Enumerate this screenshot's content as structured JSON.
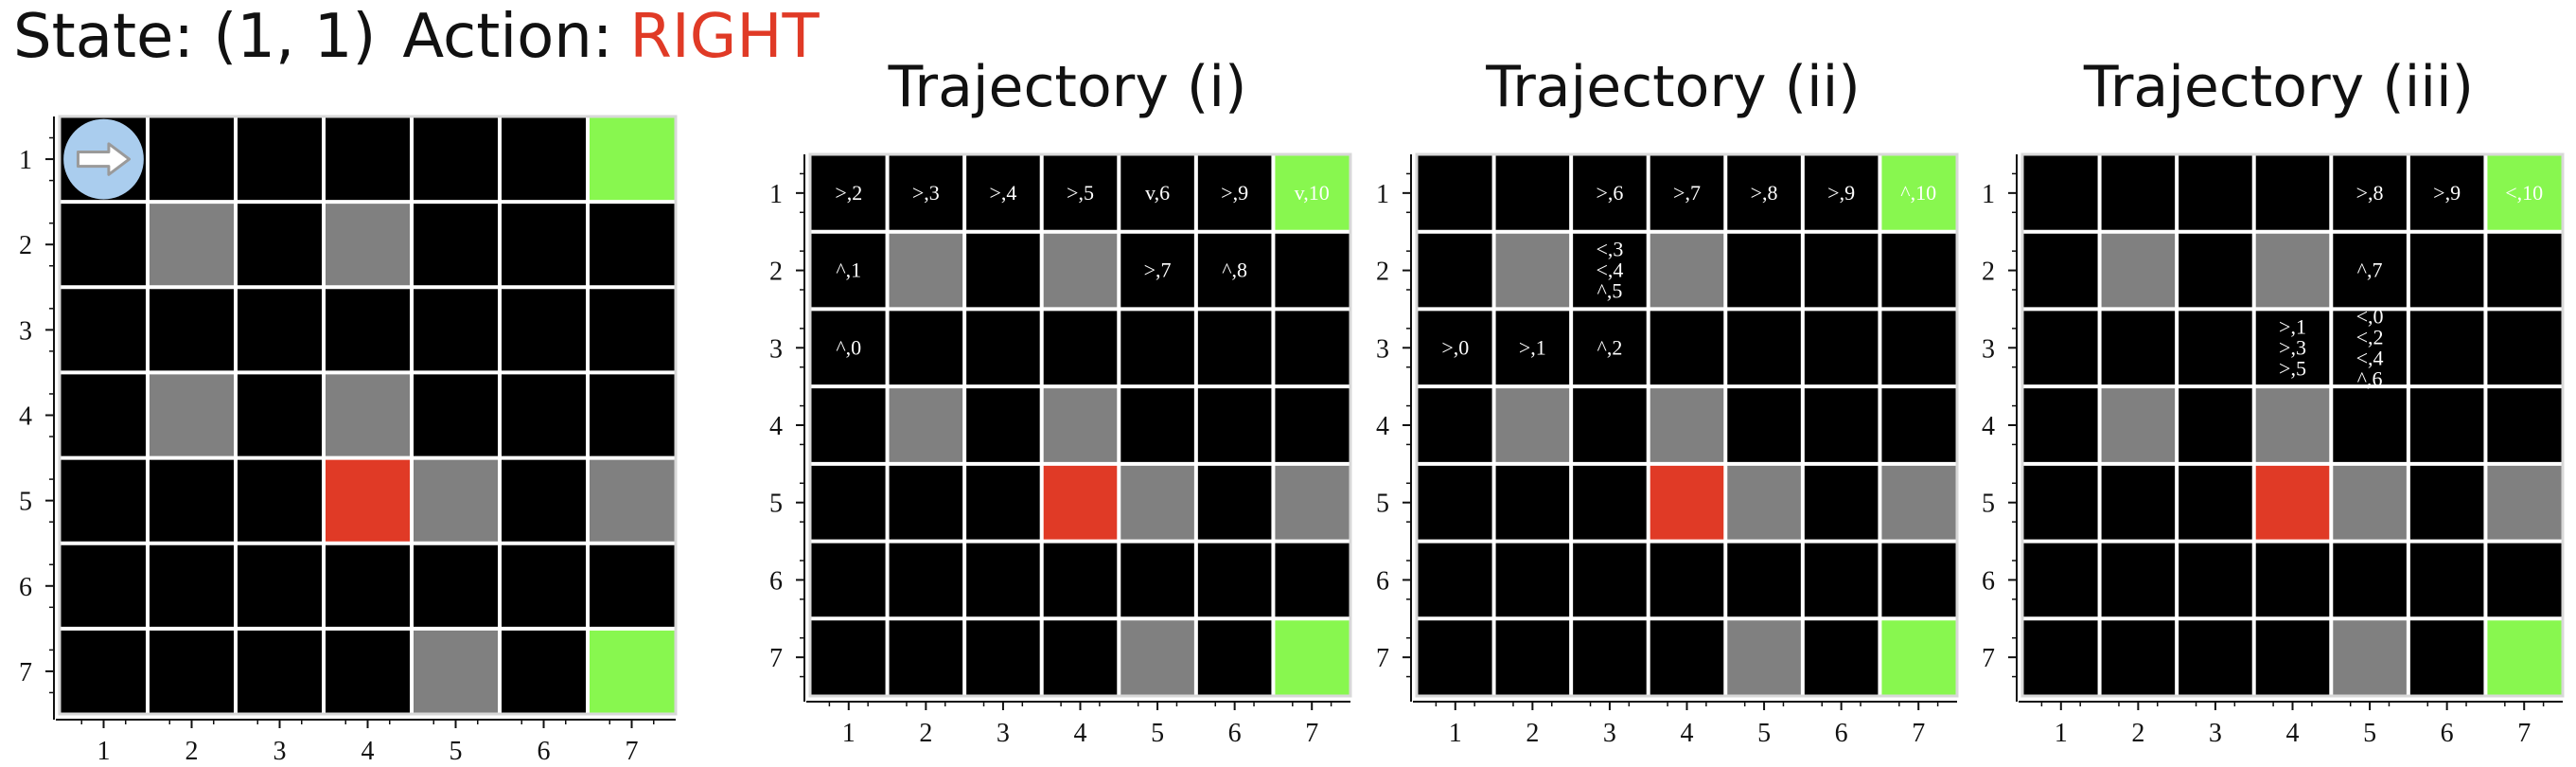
{
  "header": {
    "state_label": "State: (1, 1)",
    "action_label": "Action:",
    "action_value": "RIGHT",
    "action_color": "#e03a26"
  },
  "colors": {
    "empty": "#000000",
    "wall": "#808080",
    "hazard": "#e03a26",
    "goal": "#88f74f",
    "grid_line": "#ffffff",
    "agent": "#aacdee"
  },
  "grid": {
    "rows": 7,
    "cols": 7,
    "row_ticks": [
      "1",
      "2",
      "3",
      "4",
      "5",
      "6",
      "7"
    ],
    "col_ticks": [
      "1",
      "2",
      "3",
      "4",
      "5",
      "6",
      "7"
    ],
    "walls": [
      [
        2,
        2
      ],
      [
        2,
        4
      ],
      [
        4,
        2
      ],
      [
        4,
        4
      ],
      [
        5,
        5
      ],
      [
        5,
        7
      ],
      [
        7,
        5
      ]
    ],
    "hazards": [
      [
        5,
        4
      ]
    ],
    "goals": [
      [
        1,
        7
      ],
      [
        7,
        7
      ]
    ]
  },
  "main_panel": {
    "agent_cell": [
      1,
      1
    ],
    "agent_icon": "right-arrow-icon"
  },
  "trajectories": [
    {
      "title": "Trajectory (i)",
      "cells": [
        {
          "r": 1,
          "c": 1,
          "lines": [
            ">,2"
          ]
        },
        {
          "r": 1,
          "c": 2,
          "lines": [
            ">,3"
          ]
        },
        {
          "r": 1,
          "c": 3,
          "lines": [
            ">,4"
          ]
        },
        {
          "r": 1,
          "c": 4,
          "lines": [
            ">,5"
          ]
        },
        {
          "r": 1,
          "c": 5,
          "lines": [
            "v,6"
          ]
        },
        {
          "r": 1,
          "c": 6,
          "lines": [
            ">,9"
          ]
        },
        {
          "r": 1,
          "c": 7,
          "lines": [
            "v,10"
          ]
        },
        {
          "r": 2,
          "c": 1,
          "lines": [
            "^,1"
          ]
        },
        {
          "r": 2,
          "c": 5,
          "lines": [
            ">,7"
          ]
        },
        {
          "r": 2,
          "c": 6,
          "lines": [
            "^,8"
          ]
        },
        {
          "r": 3,
          "c": 1,
          "lines": [
            "^,0"
          ]
        }
      ]
    },
    {
      "title": "Trajectory (ii)",
      "cells": [
        {
          "r": 1,
          "c": 3,
          "lines": [
            ">,6"
          ]
        },
        {
          "r": 1,
          "c": 4,
          "lines": [
            ">,7"
          ]
        },
        {
          "r": 1,
          "c": 5,
          "lines": [
            ">,8"
          ]
        },
        {
          "r": 1,
          "c": 6,
          "lines": [
            ">,9"
          ]
        },
        {
          "r": 1,
          "c": 7,
          "lines": [
            "^,10"
          ]
        },
        {
          "r": 2,
          "c": 3,
          "lines": [
            "<,3",
            "<,4",
            "^,5"
          ]
        },
        {
          "r": 3,
          "c": 1,
          "lines": [
            ">,0"
          ]
        },
        {
          "r": 3,
          "c": 2,
          "lines": [
            ">,1"
          ]
        },
        {
          "r": 3,
          "c": 3,
          "lines": [
            "^,2"
          ]
        }
      ]
    },
    {
      "title": "Trajectory (iii)",
      "cells": [
        {
          "r": 1,
          "c": 5,
          "lines": [
            ">,8"
          ]
        },
        {
          "r": 1,
          "c": 6,
          "lines": [
            ">,9"
          ]
        },
        {
          "r": 1,
          "c": 7,
          "lines": [
            "<,10"
          ]
        },
        {
          "r": 2,
          "c": 5,
          "lines": [
            "^,7"
          ]
        },
        {
          "r": 3,
          "c": 4,
          "lines": [
            ">,1",
            ">,3",
            ">,5"
          ]
        },
        {
          "r": 3,
          "c": 5,
          "lines": [
            "<,0",
            "<,2",
            "<,4",
            "^,6"
          ]
        }
      ]
    }
  ]
}
